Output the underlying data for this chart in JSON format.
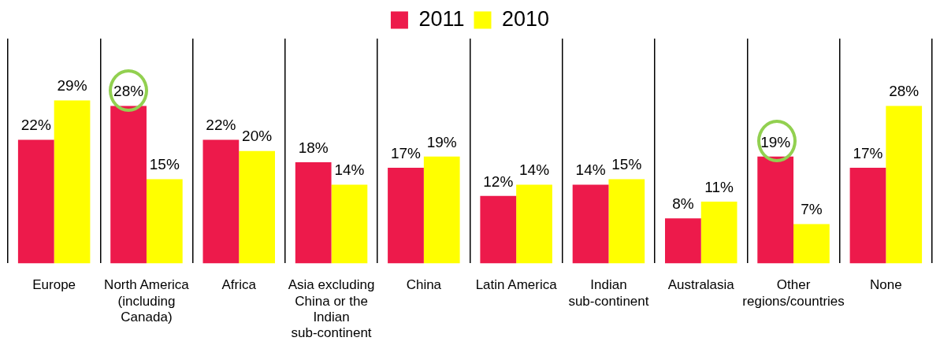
{
  "chart_data": {
    "type": "bar",
    "categories": [
      "Europe",
      "North America (including Canada)",
      "Africa",
      "Asia excluding China or the Indian sub-continent",
      "China",
      "Latin America",
      "Indian sub-continent",
      "Australasia",
      "Other regions/countries",
      "None"
    ],
    "series": [
      {
        "name": "2011",
        "color": "#ed1a4b",
        "values": [
          22,
          28,
          22,
          18,
          17,
          12,
          14,
          8,
          19,
          17
        ],
        "value_labels": [
          "22%",
          "28%",
          "22%",
          "18%",
          "17%",
          "12%",
          "14%",
          "8%",
          "19%",
          "17%"
        ]
      },
      {
        "name": "2010",
        "color": "#ffff00",
        "values": [
          29,
          15,
          20,
          14,
          19,
          14,
          15,
          11,
          7,
          28
        ],
        "value_labels": [
          "29%",
          "15%",
          "20%",
          "14%",
          "19%",
          "14%",
          "15%",
          "11%",
          "7%",
          "28%"
        ]
      }
    ],
    "legend": "top",
    "grid": "x"
  }
}
